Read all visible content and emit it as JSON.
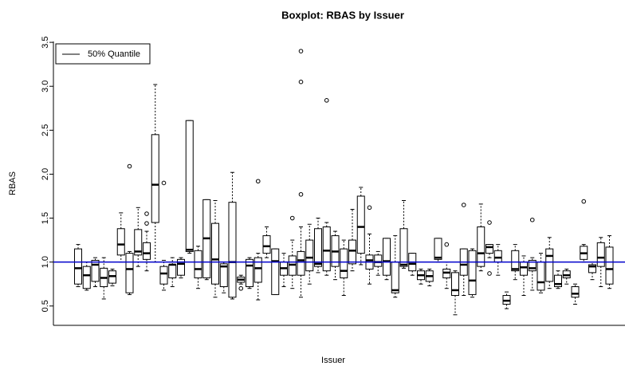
{
  "chart_data": {
    "type": "boxplot",
    "title": "Boxplot: RBAS by Issuer",
    "xlabel": "Issuer",
    "ylabel": "RBAS",
    "ylim": [
      0.28,
      3.51
    ],
    "yticks": [
      0.5,
      {
        "value": 1,
        "label": "1.0"
      },
      1.5,
      {
        "value": 2,
        "label": "2.0"
      },
      2.5,
      {
        "value": 3,
        "label": "3.0"
      },
      3.5
    ],
    "box_color": "#000000",
    "reference_line": {
      "value": 1,
      "color": "#0000cc"
    },
    "legend": {
      "label": "50% Quantile",
      "color": "#000000",
      "position": "top-left"
    },
    "boxes": [
      {
        "lo": 0.72,
        "q1": 0.75,
        "med": 0.93,
        "q3": 1.15,
        "hi": 1.2
      },
      {
        "lo": 0.68,
        "q1": 0.7,
        "med": 0.85,
        "q3": 0.95,
        "hi": 1.0
      },
      {
        "lo": 0.72,
        "q1": 0.78,
        "med": 0.97,
        "q3": 1.02,
        "hi": 1.05
      },
      {
        "lo": 0.58,
        "q1": 0.72,
        "med": 0.82,
        "q3": 0.93,
        "hi": 1.05
      },
      {
        "lo": 0.73,
        "q1": 0.76,
        "med": 0.84,
        "q3": 0.9,
        "hi": 0.92
      },
      {
        "lo": 1.0,
        "q1": 1.08,
        "med": 1.2,
        "q3": 1.38,
        "hi": 1.56
      },
      {
        "lo": 0.63,
        "q1": 0.65,
        "med": 0.92,
        "q3": 1.1,
        "hi": 1.12,
        "out": [
          2.09
        ]
      },
      {
        "lo": 0.95,
        "q1": 1.08,
        "med": 1.12,
        "q3": 1.37,
        "hi": 1.62
      },
      {
        "lo": 0.9,
        "q1": 1.03,
        "med": 1.1,
        "q3": 1.22,
        "hi": 1.35,
        "out": [
          1.44,
          1.55
        ]
      },
      {
        "lo": 1.0,
        "q1": 1.45,
        "med": 1.88,
        "q3": 2.45,
        "hi": 3.02
      },
      {
        "lo": 0.68,
        "q1": 0.75,
        "med": 0.87,
        "q3": 0.95,
        "hi": 1.02,
        "out": [
          1.9
        ]
      },
      {
        "lo": 0.72,
        "q1": 0.82,
        "med": 0.97,
        "q3": 0.97,
        "hi": 1.05
      },
      {
        "lo": 0.82,
        "q1": 0.85,
        "med": 0.98,
        "q3": 1.03,
        "hi": 1.05
      },
      {
        "lo": 1.1,
        "q1": 1.12,
        "med": 1.14,
        "q3": 2.61,
        "hi": 2.61
      },
      {
        "lo": 0.7,
        "q1": 0.82,
        "med": 0.92,
        "q3": 1.13,
        "hi": 1.18
      },
      {
        "lo": 0.8,
        "q1": 0.82,
        "med": 1.27,
        "q3": 1.71,
        "hi": 1.71
      },
      {
        "lo": 0.6,
        "q1": 0.75,
        "med": 1.03,
        "q3": 1.44,
        "hi": 1.7
      },
      {
        "lo": 0.65,
        "q1": 0.72,
        "med": 0.95,
        "q3": 0.98,
        "hi": 1.0
      },
      {
        "lo": 0.58,
        "q1": 0.6,
        "med": 1.0,
        "q3": 1.68,
        "hi": 2.02
      },
      {
        "lo": 0.75,
        "q1": 0.77,
        "med": 0.8,
        "q3": 0.83,
        "hi": 0.85,
        "out": [
          0.7
        ]
      },
      {
        "lo": 0.7,
        "q1": 0.72,
        "med": 0.96,
        "q3": 1.03,
        "hi": 1.05
      },
      {
        "lo": 0.57,
        "q1": 0.77,
        "med": 0.93,
        "q3": 1.05,
        "hi": 1.1,
        "out": [
          1.92
        ]
      },
      {
        "lo": 1.05,
        "q1": 1.1,
        "med": 1.18,
        "q3": 1.3,
        "hi": 1.4
      },
      {
        "lo": 0.63,
        "q1": 0.63,
        "med": 1.01,
        "q3": 1.15,
        "hi": 1.15
      },
      {
        "lo": 0.72,
        "q1": 0.85,
        "med": 0.93,
        "q3": 1.0,
        "hi": 1.1
      },
      {
        "lo": 0.7,
        "q1": 0.85,
        "med": 0.97,
        "q3": 1.07,
        "hi": 1.25,
        "out": [
          1.5
        ]
      },
      {
        "lo": 0.6,
        "q1": 0.85,
        "med": 1.02,
        "q3": 1.12,
        "hi": 1.4,
        "out": [
          1.77,
          3.05,
          3.4
        ]
      },
      {
        "lo": 0.75,
        "q1": 0.9,
        "med": 1.05,
        "q3": 1.25,
        "hi": 1.43
      },
      {
        "lo": 0.88,
        "q1": 0.95,
        "med": 0.98,
        "q3": 1.38,
        "hi": 1.5
      },
      {
        "lo": 0.85,
        "q1": 0.9,
        "med": 1.13,
        "q3": 1.4,
        "hi": 1.45,
        "out": [
          2.84
        ]
      },
      {
        "lo": 0.8,
        "q1": 0.95,
        "med": 1.12,
        "q3": 1.3,
        "hi": 1.35
      },
      {
        "lo": 0.62,
        "q1": 0.82,
        "med": 0.9,
        "q3": 1.15,
        "hi": 1.25
      },
      {
        "lo": 0.9,
        "q1": 0.98,
        "med": 1.13,
        "q3": 1.25,
        "hi": 1.6
      },
      {
        "lo": 0.97,
        "q1": 1.1,
        "med": 1.4,
        "q3": 1.75,
        "hi": 1.85
      },
      {
        "lo": 0.75,
        "q1": 0.92,
        "med": 1.02,
        "q3": 1.08,
        "hi": 1.32,
        "out": [
          1.62
        ]
      },
      {
        "lo": 0.85,
        "q1": 0.95,
        "med": 1.0,
        "q3": 1.08,
        "hi": 1.12
      },
      {
        "lo": 0.8,
        "q1": 0.85,
        "med": 1.01,
        "q3": 1.27,
        "hi": 1.27
      },
      {
        "lo": 0.6,
        "q1": 0.65,
        "med": 0.68,
        "q3": 1.0,
        "hi": 1.3
      },
      {
        "lo": 0.93,
        "q1": 0.95,
        "med": 0.97,
        "q3": 1.38,
        "hi": 1.7
      },
      {
        "lo": 0.85,
        "q1": 0.9,
        "med": 0.98,
        "q3": 1.1,
        "hi": 1.1
      },
      {
        "lo": 0.75,
        "q1": 0.8,
        "med": 0.85,
        "q3": 0.9,
        "hi": 0.92
      },
      {
        "lo": 0.73,
        "q1": 0.78,
        "med": 0.84,
        "q3": 0.9,
        "hi": 0.92
      },
      {
        "lo": 1.0,
        "q1": 1.03,
        "med": 1.05,
        "q3": 1.27,
        "hi": 1.27
      },
      {
        "lo": 0.7,
        "q1": 0.82,
        "med": 0.88,
        "q3": 0.92,
        "hi": 1.0,
        "out": [
          1.2
        ]
      },
      {
        "lo": 0.4,
        "q1": 0.62,
        "med": 0.68,
        "q3": 0.88,
        "hi": 0.9
      },
      {
        "lo": 0.62,
        "q1": 0.85,
        "med": 0.97,
        "q3": 1.15,
        "hi": 1.15,
        "out": [
          1.65
        ]
      },
      {
        "lo": 0.6,
        "q1": 0.63,
        "med": 0.79,
        "q3": 1.13,
        "hi": 1.15
      },
      {
        "lo": 0.9,
        "q1": 0.95,
        "med": 1.1,
        "q3": 1.4,
        "hi": 1.66
      },
      {
        "lo": 1.05,
        "q1": 1.1,
        "med": 1.17,
        "q3": 1.2,
        "hi": 1.2,
        "out": [
          0.87,
          1.45
        ]
      },
      {
        "lo": 0.85,
        "q1": 1.0,
        "med": 1.05,
        "q3": 1.13,
        "hi": 1.2
      },
      {
        "lo": 0.47,
        "q1": 0.52,
        "med": 0.56,
        "q3": 0.62,
        "hi": 0.66
      },
      {
        "lo": 0.8,
        "q1": 0.9,
        "med": 0.92,
        "q3": 1.13,
        "hi": 1.2
      },
      {
        "lo": 0.62,
        "q1": 0.85,
        "med": 0.94,
        "q3": 1.0,
        "hi": 1.07
      },
      {
        "lo": 0.68,
        "q1": 0.9,
        "med": 0.93,
        "q3": 1.02,
        "hi": 1.05,
        "out": [
          1.48
        ]
      },
      {
        "lo": 0.65,
        "q1": 0.68,
        "med": 0.77,
        "q3": 1.0,
        "hi": 1.1
      },
      {
        "lo": 0.7,
        "q1": 0.78,
        "med": 1.07,
        "q3": 1.15,
        "hi": 1.28
      },
      {
        "lo": 0.7,
        "q1": 0.72,
        "med": 0.75,
        "q3": 0.85,
        "hi": 0.9
      },
      {
        "lo": 0.75,
        "q1": 0.82,
        "med": 0.85,
        "q3": 0.9,
        "hi": 0.92
      },
      {
        "lo": 0.52,
        "q1": 0.6,
        "med": 0.64,
        "q3": 0.72,
        "hi": 0.75
      },
      {
        "lo": 1.0,
        "q1": 1.03,
        "med": 1.1,
        "q3": 1.18,
        "hi": 1.2,
        "out": [
          1.69
        ]
      },
      {
        "lo": 0.8,
        "q1": 0.88,
        "med": 0.95,
        "q3": 0.97,
        "hi": 1.0
      },
      {
        "lo": 0.72,
        "q1": 0.95,
        "med": 1.05,
        "q3": 1.22,
        "hi": 1.28
      },
      {
        "lo": 0.7,
        "q1": 0.75,
        "med": 0.92,
        "q3": 1.17,
        "hi": 1.3
      }
    ]
  }
}
